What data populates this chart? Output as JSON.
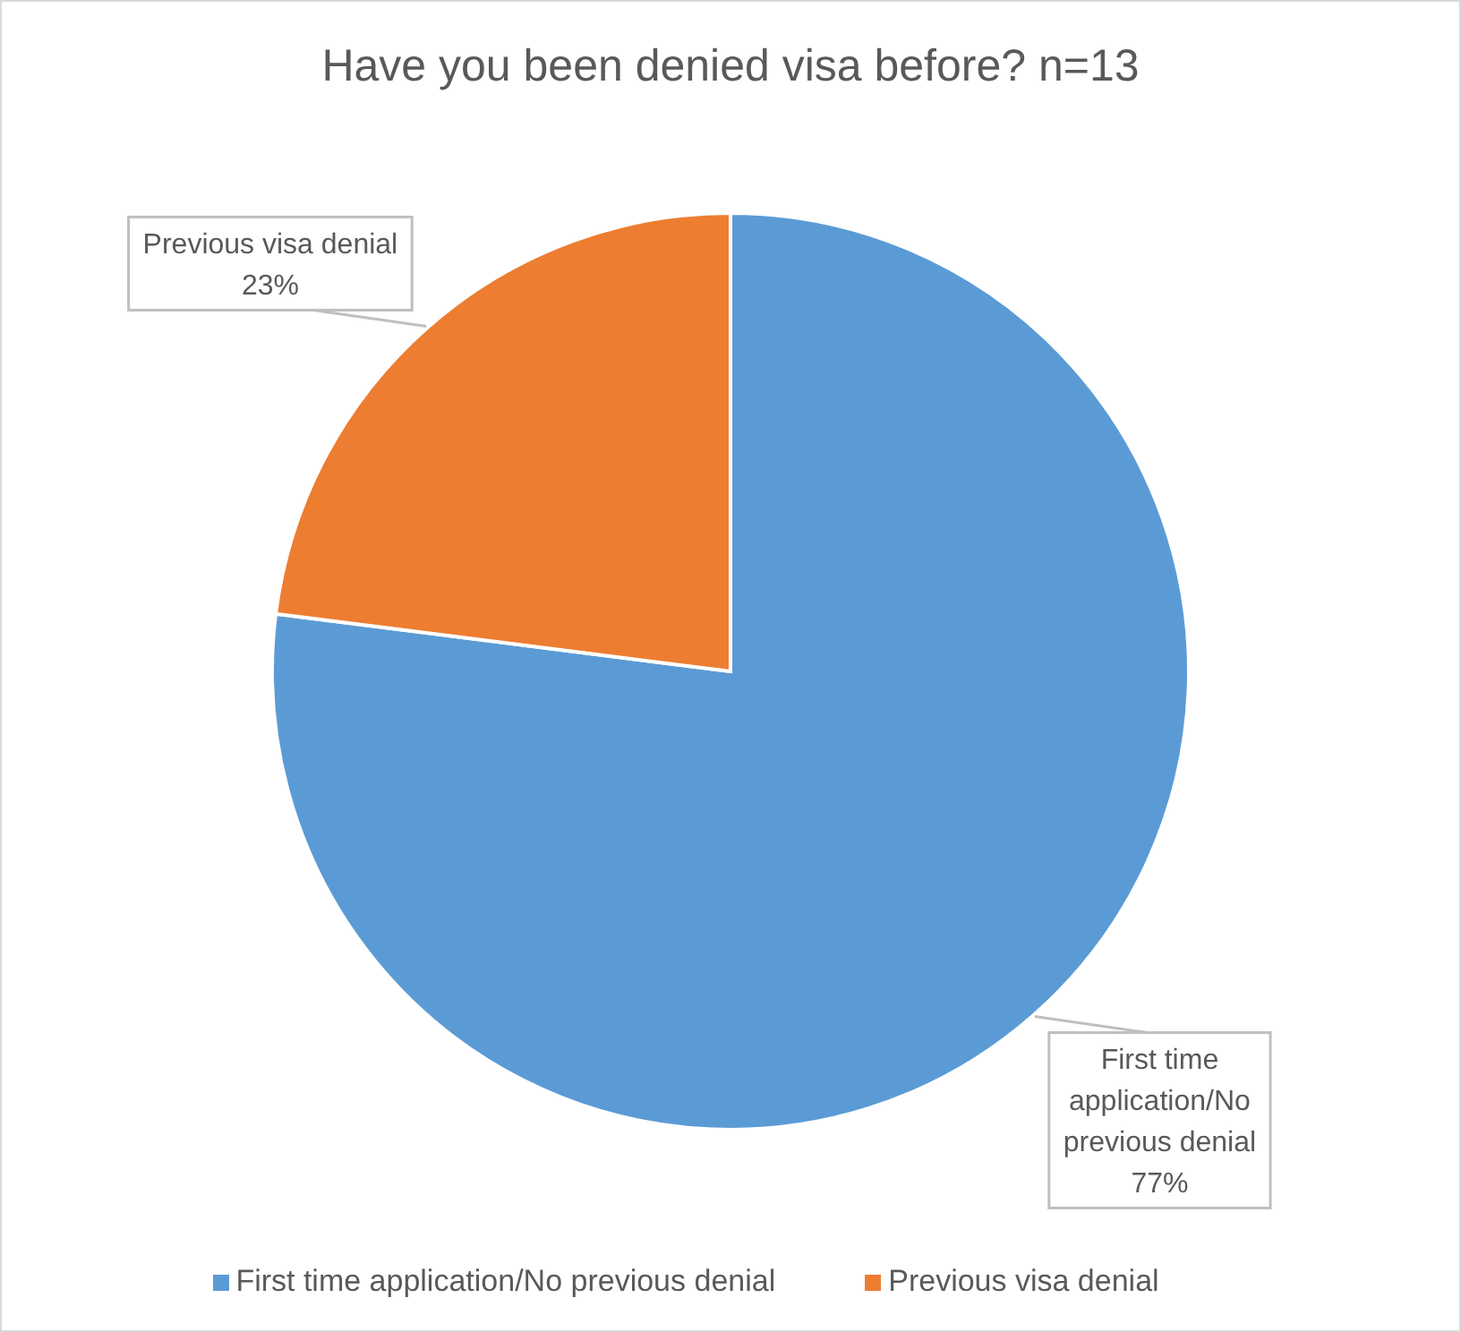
{
  "chart_data": {
    "type": "pie",
    "title": "Have you been denied visa before? n=13",
    "categories": [
      "First time application/No previous denial",
      "Previous visa denial"
    ],
    "values": [
      77,
      23
    ],
    "colors": [
      "#5b9bd5",
      "#ed7d31"
    ],
    "value_labels": [
      "77%",
      "23%"
    ],
    "legend": "bottom"
  }
}
